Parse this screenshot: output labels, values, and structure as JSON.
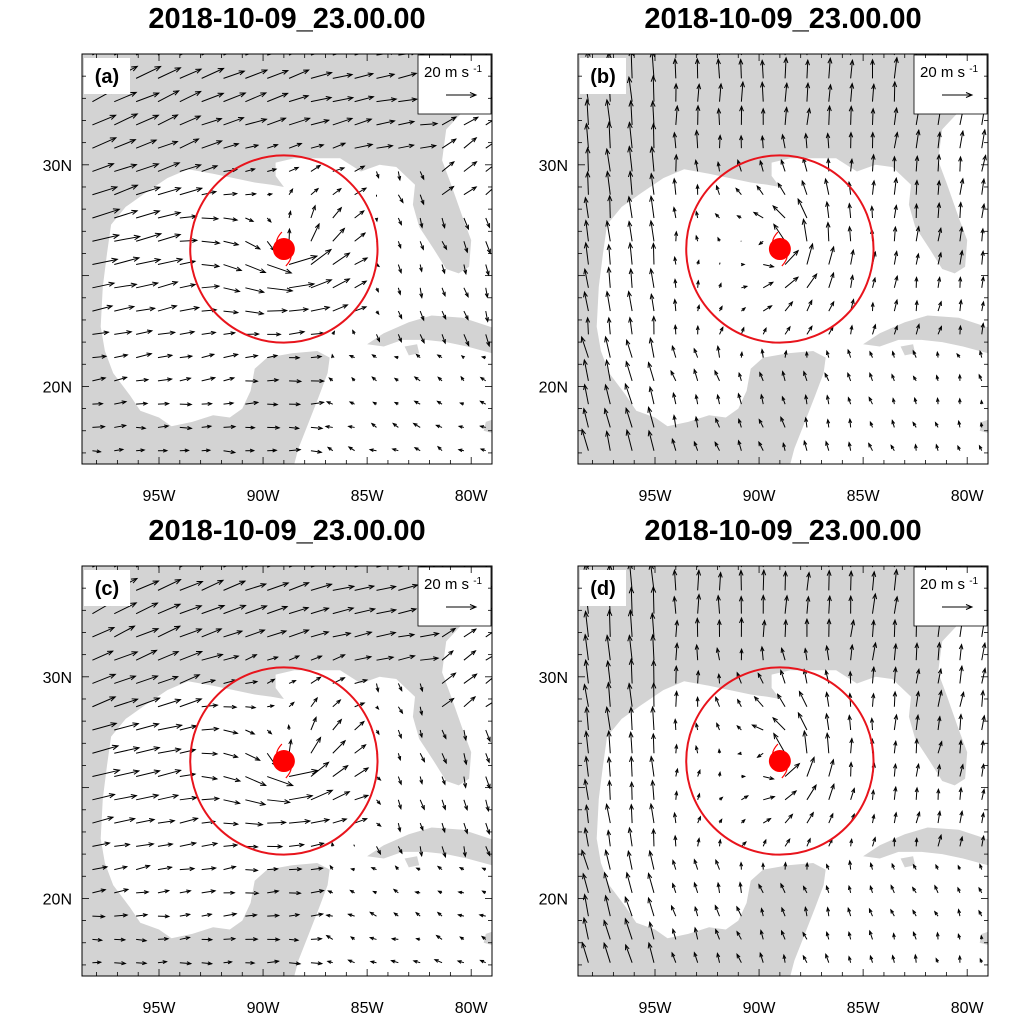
{
  "figure": {
    "panels": [
      {
        "id": "a",
        "title": "2018-10-09_23.00.00",
        "label": "(a)",
        "flow": "sw-strong"
      },
      {
        "id": "b",
        "title": "2018-10-09_23.00.00",
        "label": "(b)",
        "flow": "south"
      },
      {
        "id": "c",
        "title": "2018-10-09_23.00.00",
        "label": "(c)",
        "flow": "sw-strong"
      },
      {
        "id": "d",
        "title": "2018-10-09_23.00.00",
        "label": "(d)",
        "flow": "south"
      }
    ],
    "reference_vector": {
      "value": "20 m s",
      "exponent": "-1"
    },
    "lon_ticks": [
      "95W",
      "90W",
      "85W",
      "80W"
    ],
    "lat_ticks": [
      "30N",
      "20N"
    ],
    "map_extent": {
      "lon_min": -98.7,
      "lon_max": -79.0,
      "lat_min": 16.5,
      "lat_max": 35.0
    },
    "storm_center": {
      "lon": -89.0,
      "lat": 26.2
    },
    "circle_radius_deg": 4.5,
    "colors": {
      "land": "#d3d3d3",
      "ocean": "#ffffff",
      "circle": "#e8141c",
      "storm": "#ff0000",
      "vector": "#000000"
    }
  }
}
